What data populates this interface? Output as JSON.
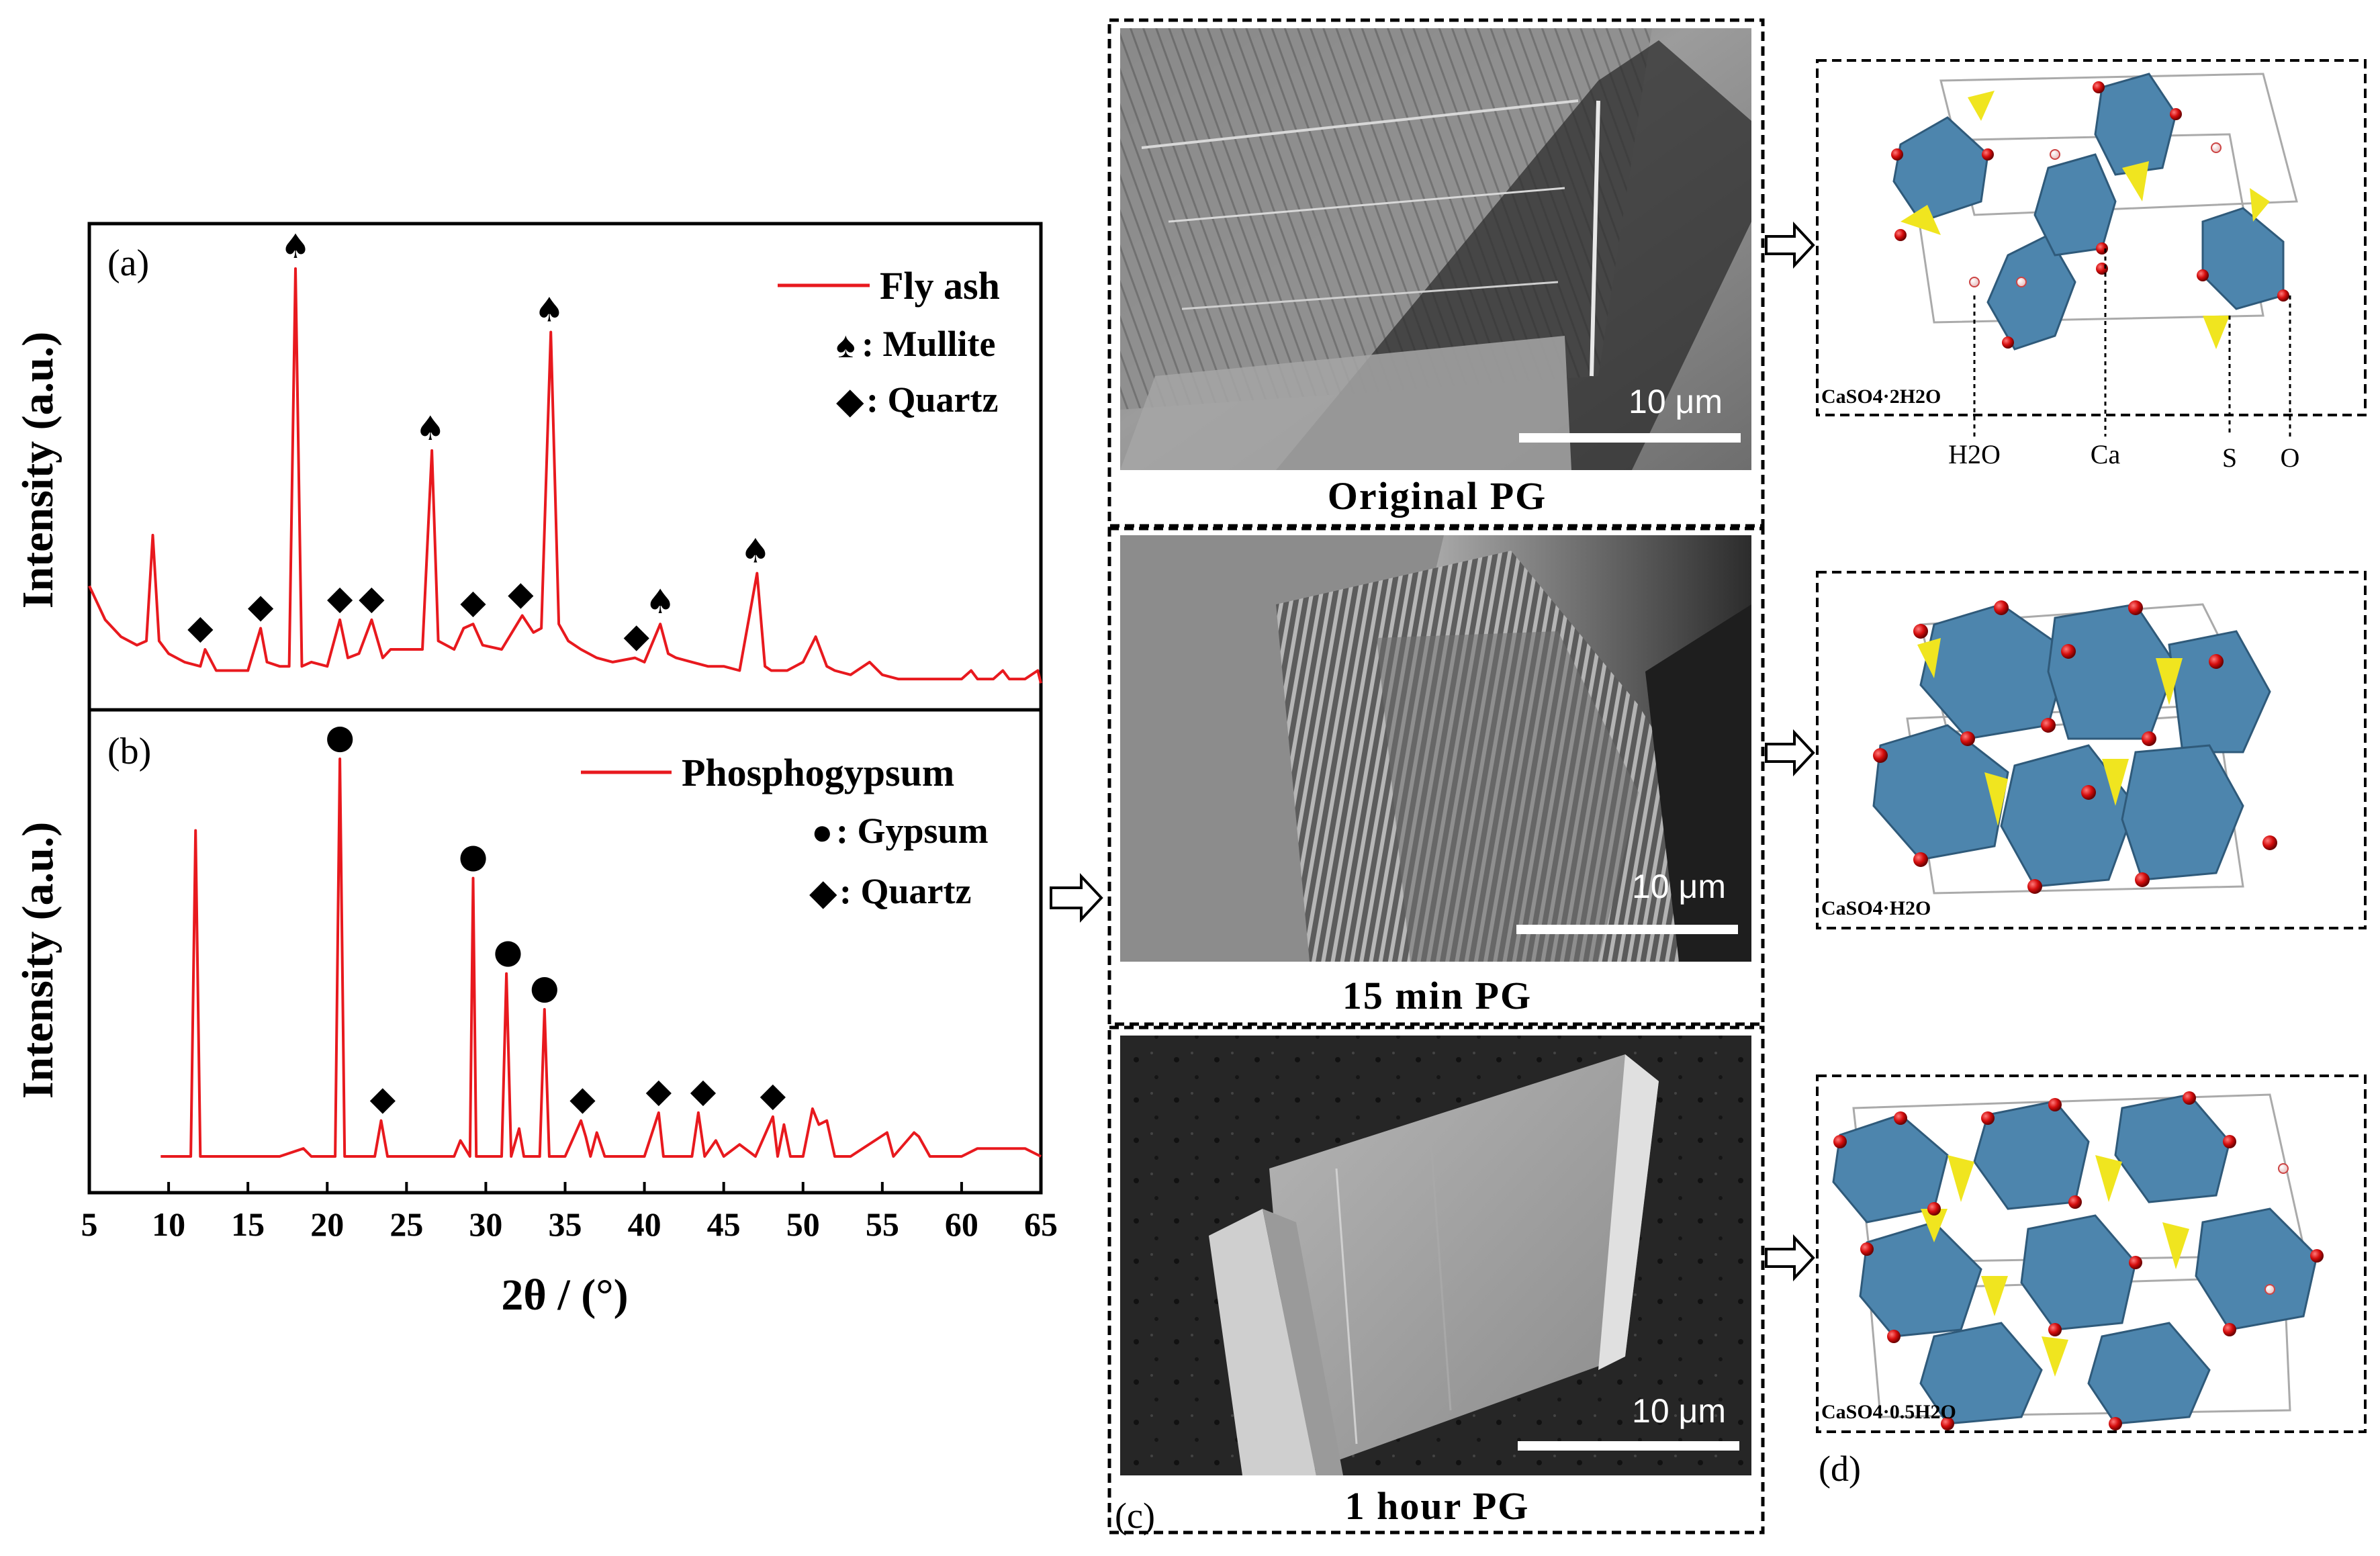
{
  "xrd": {
    "panel_a": {
      "label": "(a)",
      "legend_series": "Fly ash",
      "legend_mullite": ": Mullite",
      "legend_quartz": ": Quartz"
    },
    "panel_b": {
      "label": "(b)",
      "legend_series": "Phosphogypsum",
      "legend_gypsum": ": Gypsum",
      "legend_quartz": ": Quartz"
    },
    "ylabel": "Intensity (a.u.)",
    "xlabel": "2θ / (°)",
    "xticks": [
      "5",
      "10",
      "15",
      "20",
      "25",
      "30",
      "35",
      "40",
      "45",
      "50",
      "55",
      "60",
      "65"
    ]
  },
  "chart_data": [
    {
      "type": "line",
      "name": "Fly ash",
      "xlim": [
        5,
        65
      ],
      "ylim": [
        0,
        1
      ],
      "x": [
        5,
        6,
        7,
        8,
        8.6,
        9,
        9.4,
        10,
        11,
        12,
        12.3,
        13,
        14,
        15,
        15.8,
        16.2,
        17,
        17.6,
        18,
        18.4,
        19,
        20,
        20.8,
        21.3,
        22,
        22.8,
        23.5,
        24,
        25,
        26,
        26.6,
        27,
        28,
        28.6,
        29.2,
        29.8,
        31,
        32.3,
        33,
        33.5,
        34.1,
        34.6,
        35.2,
        36,
        37,
        38,
        39.4,
        40,
        41,
        41.5,
        42,
        43,
        44,
        45,
        46,
        47.1,
        47.6,
        48,
        49,
        50,
        50.8,
        51.5,
        52,
        53,
        54.2,
        55,
        56,
        57,
        58,
        59,
        60,
        60.6,
        61,
        62,
        62.6,
        63,
        64,
        64.8,
        65
      ],
      "y": [
        0.25,
        0.17,
        0.13,
        0.11,
        0.12,
        0.37,
        0.12,
        0.09,
        0.07,
        0.06,
        0.1,
        0.05,
        0.05,
        0.05,
        0.15,
        0.07,
        0.06,
        0.06,
        1.0,
        0.06,
        0.07,
        0.06,
        0.17,
        0.08,
        0.09,
        0.17,
        0.08,
        0.1,
        0.1,
        0.1,
        0.57,
        0.12,
        0.1,
        0.15,
        0.16,
        0.11,
        0.1,
        0.18,
        0.14,
        0.15,
        0.85,
        0.16,
        0.12,
        0.1,
        0.08,
        0.07,
        0.08,
        0.07,
        0.16,
        0.09,
        0.08,
        0.07,
        0.06,
        0.06,
        0.05,
        0.28,
        0.06,
        0.05,
        0.05,
        0.07,
        0.13,
        0.06,
        0.05,
        0.04,
        0.07,
        0.04,
        0.03,
        0.03,
        0.03,
        0.03,
        0.03,
        0.05,
        0.03,
        0.03,
        0.05,
        0.03,
        0.03,
        0.05,
        0.02
      ],
      "markers": [
        {
          "phase": "Mullite",
          "x": [
            18.0,
            26.5,
            34.0,
            41.0,
            47.0
          ]
        },
        {
          "phase": "Quartz",
          "x": [
            12.0,
            15.8,
            20.8,
            22.8,
            29.2,
            32.2,
            39.5
          ]
        }
      ]
    },
    {
      "type": "line",
      "name": "Phosphogypsum",
      "xlim": [
        5,
        65
      ],
      "ylim": [
        0,
        1
      ],
      "x": [
        9.5,
        10,
        11,
        11.4,
        11.7,
        12.0,
        13,
        15,
        17,
        18.5,
        19,
        20.5,
        20.8,
        21.1,
        23,
        23.4,
        23.8,
        26,
        28,
        28.4,
        29.0,
        29.2,
        29.4,
        31.0,
        31.3,
        31.6,
        32.1,
        32.4,
        33.4,
        33.7,
        34.0,
        35,
        36.0,
        36.3,
        36.6,
        37.0,
        37.5,
        38,
        40,
        40.9,
        41.2,
        43,
        43.4,
        43.8,
        44.5,
        45,
        46,
        47,
        48.1,
        48.4,
        48.8,
        49.2,
        50,
        50.6,
        51.0,
        51.5,
        52,
        53,
        55.3,
        55.7,
        57,
        57.3,
        58,
        60,
        61,
        62,
        63,
        64,
        65
      ],
      "y": [
        0.0,
        0.0,
        0.0,
        0.0,
        0.82,
        0.0,
        0.0,
        0.0,
        0.0,
        0.02,
        0.0,
        0.0,
        1.0,
        0.0,
        0.0,
        0.09,
        0.0,
        0.0,
        0.0,
        0.04,
        0.0,
        0.7,
        0.0,
        0.0,
        0.46,
        0.0,
        0.07,
        0.0,
        0.0,
        0.37,
        0.0,
        0.0,
        0.09,
        0.05,
        0.0,
        0.06,
        0.0,
        0.0,
        0.0,
        0.11,
        0.0,
        0.0,
        0.11,
        0.0,
        0.04,
        0.0,
        0.03,
        0.0,
        0.1,
        0.0,
        0.08,
        0.0,
        0.0,
        0.12,
        0.08,
        0.09,
        0.0,
        0.0,
        0.06,
        0.0,
        0.06,
        0.05,
        0.0,
        0.0,
        0.02,
        0.02,
        0.02,
        0.02,
        0.0
      ],
      "markers": [
        {
          "phase": "Gypsum",
          "x": [
            20.8,
            29.2,
            31.4,
            33.7
          ]
        },
        {
          "phase": "Quartz",
          "x": [
            23.5,
            36.1,
            40.9,
            43.7,
            48.1
          ]
        }
      ]
    }
  ],
  "sem": {
    "panels": [
      {
        "caption": "Original PG",
        "scale": "10 μm"
      },
      {
        "caption": "15 min PG",
        "scale": "10 μm"
      },
      {
        "caption": "1 hour PG",
        "scale": "10 μm"
      }
    ],
    "panel_label": "(c)"
  },
  "crystal": {
    "panel_label": "(d)",
    "structures": [
      {
        "formula": "CaSO4·2H2O"
      },
      {
        "formula": "CaSO4·H2O"
      },
      {
        "formula": "CaSO4·0.5H2O"
      }
    ],
    "atom_labels": [
      "H2O",
      "Ca",
      "S",
      "O"
    ]
  },
  "colors": {
    "series": "#e8191e",
    "polyhedron_ca": "#4d85ad",
    "tetra_s": "#f0e51f",
    "oxygen": "#d50d0d"
  }
}
